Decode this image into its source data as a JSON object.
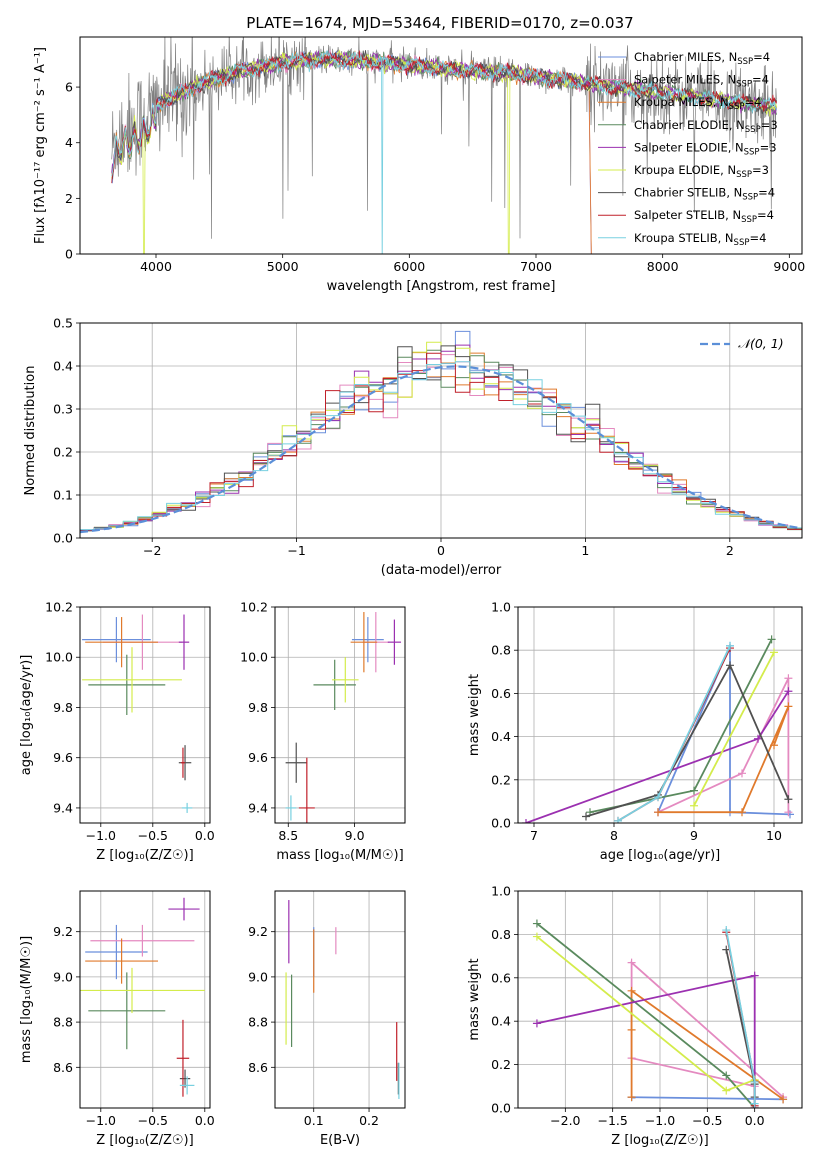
{
  "colors": {
    "chabrier_miles": "#6b8fdc",
    "salpeter_miles": "#e48ac0",
    "kroupa_miles": "#e07a2c",
    "chabrier_elodie": "#5a8a5e",
    "salpeter_elodie": "#9b30b0",
    "kroupa_elodie": "#d4ec4c",
    "chabrier_stelib": "#505050",
    "salpeter_stelib": "#c0202a",
    "kroupa_stelib": "#78d0e0",
    "observed": "#808080",
    "normal_curve": "#5b8fd8",
    "grid": "#b0b0b0"
  },
  "chart_data": [
    {
      "id": "spectrum",
      "type": "line",
      "title": "PLATE=1674, MJD=53464, FIBERID=0170, z=0.037",
      "xlabel": "wavelength [Angstrom, rest frame]",
      "ylabel": "Flux [fλ10⁻¹⁷ erg cm⁻² s⁻¹ A⁻¹]",
      "xlim": [
        3400,
        9100
      ],
      "ylim": [
        0,
        7.8
      ],
      "xticks": [
        "4000",
        "5000",
        "6000",
        "7000",
        "8000",
        "9000"
      ],
      "yticks": [
        "0",
        "2",
        "4",
        "6"
      ],
      "legend_position": "upper-right",
      "legend": [
        "Chabrier MILES, N_SSP=4",
        "Salpeter MILES, N_SSP=4",
        "Kroupa MILES, N_SSP=4",
        "Chabrier ELODIE, N_SSP=3",
        "Salpeter ELODIE, N_SSP=3",
        "Kroupa ELODIE, N_SSP=3",
        "Chabrier STELIB, N_SSP=4",
        "Salpeter STELIB, N_SSP=4",
        "Kroupa STELIB, N_SSP=4"
      ],
      "continuum": {
        "x": [
          3650,
          3700,
          3800,
          3900,
          4000,
          4100,
          4200,
          4400,
          4600,
          4800,
          5000,
          5300,
          5600,
          6000,
          6400,
          6800,
          7200,
          7400,
          7600,
          8000,
          8400,
          8700,
          8900
        ],
        "y": [
          3.7,
          4.3,
          4.6,
          4.9,
          5.3,
          5.6,
          5.8,
          6.2,
          6.5,
          6.7,
          6.9,
          7.0,
          6.95,
          6.8,
          6.6,
          6.5,
          6.25,
          6.15,
          6.0,
          5.8,
          5.55,
          5.4,
          5.3
        ]
      }
    },
    {
      "id": "residuals",
      "type": "line",
      "xlabel": "(data-model)/error",
      "ylabel": "Normed distribution",
      "xlim": [
        -2.5,
        2.5
      ],
      "ylim": [
        0,
        0.5
      ],
      "xticks": [
        "−2",
        "−1",
        "0",
        "1",
        "2"
      ],
      "yticks": [
        "0.0",
        "0.1",
        "0.2",
        "0.3",
        "0.4",
        "0.5"
      ],
      "legend": [
        "𝒩(0, 1)"
      ],
      "legend_position": "upper-right",
      "grid": true
    },
    {
      "id": "age_vs_Z",
      "type": "scatter",
      "xlabel": "Z [log₁₀(Z/Z☉)]",
      "ylabel": "age  [log₁₀(age/yr)]",
      "xlim": [
        -1.2,
        0.05
      ],
      "ylim": [
        9.34,
        10.2
      ],
      "xticks": [
        "−1.0",
        "−0.5",
        "0.0"
      ],
      "yticks": [
        "9.4",
        "9.6",
        "9.8",
        "10.0",
        "10.2"
      ],
      "grid": true,
      "points": [
        {
          "s": "chabrier_miles",
          "x": -0.85,
          "y": 10.07,
          "xerr": 0.33,
          "yerr": 0.09
        },
        {
          "s": "salpeter_miles",
          "x": -0.6,
          "y": 10.06,
          "xerr": 0.38,
          "yerr": 0.11
        },
        {
          "s": "kroupa_miles",
          "x": -0.8,
          "y": 10.06,
          "xerr": 0.35,
          "yerr": 0.1
        },
        {
          "s": "chabrier_elodie",
          "x": -0.75,
          "y": 9.89,
          "xerr": 0.37,
          "yerr": 0.12
        },
        {
          "s": "salpeter_elodie",
          "x": -0.2,
          "y": 10.06,
          "xerr": 0.05,
          "yerr": 0.11
        },
        {
          "s": "kroupa_elodie",
          "x": -0.7,
          "y": 9.91,
          "xerr": 0.48,
          "yerr": 0.13
        },
        {
          "s": "chabrier_stelib",
          "x": -0.19,
          "y": 9.58,
          "xerr": 0.06,
          "yerr": 0.07
        },
        {
          "s": "salpeter_stelib",
          "x": -0.21,
          "y": 9.58,
          "xerr": 0.02,
          "yerr": 0.06
        },
        {
          "s": "kroupa_stelib",
          "x": -0.17,
          "y": 9.4,
          "xerr": 0.05,
          "yerr": 0.02
        }
      ]
    },
    {
      "id": "age_vs_mass",
      "type": "scatter",
      "xlabel": "mass [log₁₀(M/M☉)]",
      "xlim": [
        8.4,
        9.38
      ],
      "ylim": [
        9.34,
        10.2
      ],
      "xticks": [
        "8.5",
        "9.0"
      ],
      "yticks": [
        "9.4",
        "9.6",
        "9.8",
        "10.0",
        "10.2"
      ],
      "grid": true,
      "points": [
        {
          "s": "chabrier_miles",
          "x": 9.1,
          "y": 10.07,
          "xerr": 0.12,
          "yerr": 0.09
        },
        {
          "s": "salpeter_miles",
          "x": 9.16,
          "y": 10.06,
          "xerr": 0.1,
          "yerr": 0.12
        },
        {
          "s": "kroupa_miles",
          "x": 9.07,
          "y": 10.06,
          "xerr": 0.1,
          "yerr": 0.12
        },
        {
          "s": "chabrier_elodie",
          "x": 8.85,
          "y": 9.89,
          "xerr": 0.16,
          "yerr": 0.1
        },
        {
          "s": "salpeter_elodie",
          "x": 9.3,
          "y": 10.06,
          "xerr": 0.05,
          "yerr": 0.09
        },
        {
          "s": "kroupa_elodie",
          "x": 8.93,
          "y": 9.91,
          "xerr": 0.1,
          "yerr": 0.09
        },
        {
          "s": "chabrier_stelib",
          "x": 8.56,
          "y": 9.58,
          "xerr": 0.08,
          "yerr": 0.08
        },
        {
          "s": "salpeter_stelib",
          "x": 8.64,
          "y": 9.4,
          "xerr": 0.06,
          "yerr": 0.2
        },
        {
          "s": "kroupa_stelib",
          "x": 8.52,
          "y": 9.4,
          "xerr": 0.04,
          "yerr": 0.05
        }
      ]
    },
    {
      "id": "weight_vs_age",
      "type": "line",
      "xlabel": "age  [log₁₀(age/yr)]",
      "ylabel": "mass weight",
      "xlim": [
        6.8,
        10.35
      ],
      "ylim": [
        0,
        1.0
      ],
      "xticks": [
        "7",
        "8",
        "9",
        "10"
      ],
      "yticks": [
        "0.0",
        "0.2",
        "0.4",
        "0.6",
        "0.8",
        "1.0"
      ],
      "grid": true,
      "series": [
        {
          "s": "chabrier_miles",
          "x": [
            8.55,
            9.45,
            9.45,
            10.2
          ],
          "y": [
            0.05,
            0.82,
            0.05,
            0.04
          ]
        },
        {
          "s": "salpeter_miles",
          "x": [
            8.55,
            9.6,
            10.18,
            10.18
          ],
          "y": [
            0.05,
            0.23,
            0.67,
            0.05
          ]
        },
        {
          "s": "kroupa_miles",
          "x": [
            8.55,
            9.6,
            10.18,
            10.0
          ],
          "y": [
            0.05,
            0.05,
            0.54,
            0.36
          ]
        },
        {
          "s": "chabrier_elodie",
          "x": [
            7.7,
            9.0,
            9.97
          ],
          "y": [
            0.05,
            0.15,
            0.85
          ]
        },
        {
          "s": "salpeter_elodie",
          "x": [
            6.9,
            9.8,
            10.18
          ],
          "y": [
            0.0,
            0.39,
            0.61
          ]
        },
        {
          "s": "kroupa_elodie",
          "x": [
            9.0,
            10.0
          ],
          "y": [
            0.08,
            0.79
          ]
        },
        {
          "s": "chabrier_stelib",
          "x": [
            7.65,
            8.55,
            9.45,
            10.18
          ],
          "y": [
            0.03,
            0.13,
            0.73,
            0.11
          ]
        },
        {
          "s": "salpeter_stelib",
          "x": [
            8.05,
            8.55,
            9.45
          ],
          "y": [
            0.01,
            0.12,
            0.81
          ]
        },
        {
          "s": "kroupa_stelib",
          "x": [
            8.05,
            8.55,
            9.45
          ],
          "y": [
            0.01,
            0.12,
            0.82
          ]
        }
      ]
    },
    {
      "id": "mass_vs_Z",
      "type": "scatter",
      "xlabel": "Z [log₁₀(Z/Z☉)]",
      "ylabel": "mass [log₁₀(M/M☉)]",
      "xlim": [
        -1.2,
        0.05
      ],
      "ylim": [
        8.42,
        9.38
      ],
      "xticks": [
        "−1.0",
        "−0.5",
        "0.0"
      ],
      "yticks": [
        "8.6",
        "8.8",
        "9.0",
        "9.2"
      ],
      "grid": true,
      "points": [
        {
          "s": "chabrier_miles",
          "x": -0.85,
          "y": 9.11,
          "xerr": 0.3,
          "yerr": 0.12
        },
        {
          "s": "salpeter_miles",
          "x": -0.6,
          "y": 9.16,
          "xerr": 0.5,
          "yerr": 0.07
        },
        {
          "s": "kroupa_miles",
          "x": -0.8,
          "y": 9.07,
          "xerr": 0.35,
          "yerr": 0.1
        },
        {
          "s": "chabrier_elodie",
          "x": -0.75,
          "y": 8.85,
          "xerr": 0.37,
          "yerr": 0.17
        },
        {
          "s": "salpeter_elodie",
          "x": -0.2,
          "y": 9.3,
          "xerr": 0.15,
          "yerr": 0.05
        },
        {
          "s": "kroupa_elodie",
          "x": -0.7,
          "y": 8.94,
          "xerr": 0.7,
          "yerr": 0.1
        },
        {
          "s": "chabrier_stelib",
          "x": -0.19,
          "y": 8.55,
          "xerr": 0.05,
          "yerr": 0.04
        },
        {
          "s": "salpeter_stelib",
          "x": -0.21,
          "y": 8.64,
          "xerr": 0.06,
          "yerr": 0.17
        },
        {
          "s": "kroupa_stelib",
          "x": -0.17,
          "y": 8.52,
          "xerr": 0.07,
          "yerr": 0.04
        }
      ]
    },
    {
      "id": "mass_vs_EBV",
      "type": "scatter",
      "xlabel": "E(B-V)",
      "xlim": [
        0.03,
        0.265
      ],
      "ylim": [
        8.42,
        9.38
      ],
      "xticks": [
        "0.1",
        "0.2"
      ],
      "yticks": [
        "8.6",
        "8.8",
        "9.0",
        "9.2"
      ],
      "grid": true,
      "points": [
        {
          "s": "chabrier_miles",
          "x": 0.1,
          "y": 9.11,
          "xerr": 0.0,
          "yerr": 0.11
        },
        {
          "s": "salpeter_miles",
          "x": 0.14,
          "y": 9.16,
          "xerr": 0.0,
          "yerr": 0.06
        },
        {
          "s": "kroupa_miles",
          "x": 0.1,
          "y": 9.07,
          "xerr": 0.0,
          "yerr": 0.14
        },
        {
          "s": "chabrier_elodie",
          "x": 0.06,
          "y": 8.85,
          "xerr": 0.0,
          "yerr": 0.16
        },
        {
          "s": "salpeter_elodie",
          "x": 0.055,
          "y": 9.2,
          "xerr": 0.0,
          "yerr": 0.14
        },
        {
          "s": "kroupa_elodie",
          "x": 0.05,
          "y": 8.86,
          "xerr": 0.0,
          "yerr": 0.16
        },
        {
          "s": "chabrier_stelib",
          "x": 0.253,
          "y": 8.55,
          "xerr": 0.0,
          "yerr": 0.07
        },
        {
          "s": "salpeter_stelib",
          "x": 0.25,
          "y": 8.67,
          "xerr": 0.0,
          "yerr": 0.13
        },
        {
          "s": "kroupa_stelib",
          "x": 0.254,
          "y": 8.54,
          "xerr": 0.0,
          "yerr": 0.08
        }
      ]
    },
    {
      "id": "weight_vs_Z",
      "type": "line",
      "xlabel": "Z [log₁₀(Z/Z☉)]",
      "ylabel": "mass weight",
      "xlim": [
        -2.5,
        0.5
      ],
      "ylim": [
        0,
        1.0
      ],
      "xticks": [
        "−2.0",
        "−1.5",
        "−1.0",
        "−0.5",
        "0.0"
      ],
      "yticks": [
        "0.0",
        "0.2",
        "0.4",
        "0.6",
        "0.8",
        "1.0"
      ],
      "grid": true,
      "series": [
        {
          "s": "chabrier_miles",
          "x": [
            0.3,
            -1.3,
            -1.3
          ],
          "y": [
            0.04,
            0.05,
            0.05
          ]
        },
        {
          "s": "salpeter_miles",
          "x": [
            0.3,
            -1.3,
            -1.3,
            0.0
          ],
          "y": [
            0.05,
            0.67,
            0.23,
            0.1
          ]
        },
        {
          "s": "kroupa_miles",
          "x": [
            0.3,
            -1.3,
            -1.3,
            -1.3
          ],
          "y": [
            0.04,
            0.54,
            0.36,
            0.05
          ]
        },
        {
          "s": "chabrier_elodie",
          "x": [
            -2.3,
            -0.3,
            0.0
          ],
          "y": [
            0.85,
            0.15,
            0.0
          ]
        },
        {
          "s": "salpeter_elodie",
          "x": [
            -2.3,
            0.0,
            0.0
          ],
          "y": [
            0.39,
            0.61,
            0.0
          ]
        },
        {
          "s": "kroupa_elodie",
          "x": [
            -2.3,
            -0.3,
            0.0
          ],
          "y": [
            0.79,
            0.08,
            0.13
          ]
        },
        {
          "s": "chabrier_stelib",
          "x": [
            -0.3,
            0.0,
            0.0
          ],
          "y": [
            0.73,
            0.11,
            0.05
          ]
        },
        {
          "s": "salpeter_stelib",
          "x": [
            -0.3,
            0.0,
            0.0
          ],
          "y": [
            0.81,
            0.12,
            0.01
          ]
        },
        {
          "s": "kroupa_stelib",
          "x": [
            -0.3,
            0.0,
            0.0
          ],
          "y": [
            0.82,
            0.12,
            0.02
          ]
        }
      ]
    }
  ]
}
